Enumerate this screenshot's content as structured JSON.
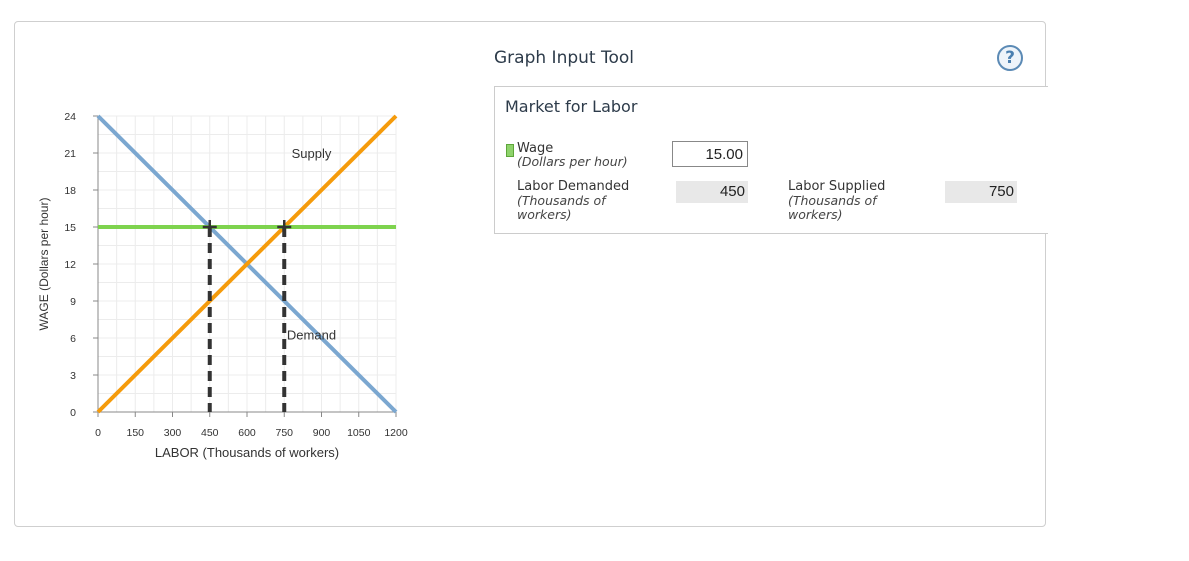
{
  "tool": {
    "title": "Graph Input Tool",
    "help_symbol": "?",
    "help_icon": "question-circle-icon"
  },
  "market": {
    "title": "Market for Labor",
    "wage_label": "Wage",
    "wage_unit": "(Dollars per hour)",
    "wage_value": "15.00",
    "wage_swatch_color": "#8ed36b",
    "demanded_label": "Labor Demanded",
    "demanded_unit_line1": "(Thousands of",
    "demanded_unit_line2": "workers)",
    "demanded_value": "450",
    "supplied_label": "Labor Supplied",
    "supplied_unit_line1": "(Thousands of",
    "supplied_unit_line2": "workers)",
    "supplied_value": "750"
  },
  "chart_data": {
    "type": "line",
    "xlabel": "LABOR (Thousands of workers)",
    "ylabel": "WAGE (Dollars per hour)",
    "xlim": [
      0,
      1200
    ],
    "ylim": [
      0,
      24
    ],
    "xticks": [
      0,
      150,
      300,
      450,
      600,
      750,
      900,
      1050,
      1200
    ],
    "yticks": [
      0,
      3,
      6,
      9,
      12,
      15,
      18,
      21,
      24
    ],
    "grid": true,
    "series": [
      {
        "name": "Supply",
        "color": "#f59b0b",
        "points": [
          [
            0,
            0
          ],
          [
            1200,
            24
          ]
        ]
      },
      {
        "name": "Demand",
        "color": "#7ba7d0",
        "points": [
          [
            0,
            24
          ],
          [
            1200,
            0
          ]
        ]
      },
      {
        "color": "#7ed34e",
        "points": [
          [
            0,
            15
          ],
          [
            1200,
            15
          ]
        ]
      }
    ],
    "annotations": [
      {
        "text": "Supply",
        "x": 900,
        "y": 21
      },
      {
        "text": "Demand",
        "x": 900,
        "y": 6.3
      }
    ],
    "markers": [
      {
        "x": 450,
        "y": 15
      },
      {
        "x": 750,
        "y": 15
      }
    ],
    "drop_lines": [
      {
        "x": 450,
        "from": 15,
        "to": 0,
        "color": "#333333"
      },
      {
        "x": 750,
        "from": 15,
        "to": 0,
        "color": "#333333"
      }
    ]
  }
}
